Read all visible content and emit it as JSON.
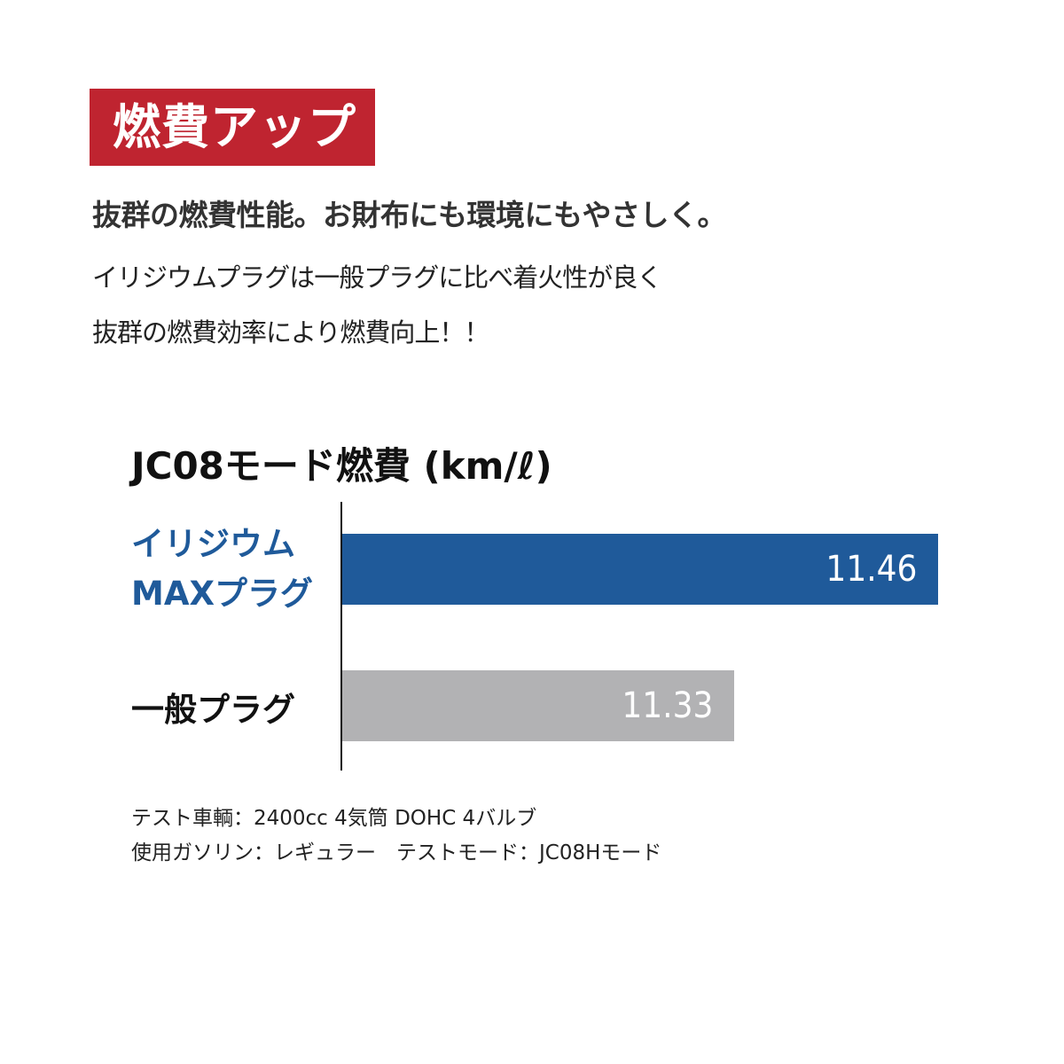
{
  "badge": "燃費アップ",
  "headline": "抜群の燃費性能。お財布にも環境にもやさしく。",
  "body": [
    "イリジウムプラグは一般プラグに比べ着火性が良く",
    "抜群の燃費効率により燃費向上！！"
  ],
  "colors": {
    "badge": "#bf2430",
    "iridium": "#1f5a9a",
    "standard": "#b2b2b4"
  },
  "chart_data": {
    "type": "bar",
    "orientation": "horizontal",
    "title": "JC08モード燃費 (km/ℓ)",
    "categories": [
      "イリジウム\nMAXプラグ",
      "一般プラグ"
    ],
    "category_lines": [
      [
        "イリジウム",
        "MAXプラグ"
      ],
      [
        "一般プラグ"
      ]
    ],
    "values": [
      11.46,
      11.33
    ],
    "value_labels": [
      "11.46",
      "11.33"
    ],
    "xlim": [
      11.08,
      11.54
    ],
    "grid": false
  },
  "notes": [
    "テスト車輌：2400cc 4気筒 DOHC 4バルブ",
    "使用ガソリン：レギュラー　テストモード：JC08Hモード"
  ]
}
